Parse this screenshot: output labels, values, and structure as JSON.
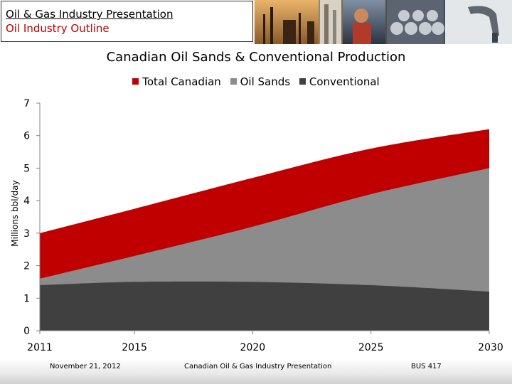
{
  "header": {
    "title_line1": "Oil & Gas Industry Presentation",
    "title_line2": "Oil Industry Outline"
  },
  "footer": {
    "date": "November 21, 2012",
    "presentation": "Canadian Oil & Gas Industry Presentation",
    "course": "BUS 417"
  },
  "colors": {
    "total": "#c00000",
    "oil_sands": "#8c8c8c",
    "conventional": "#404040"
  },
  "chart_data": {
    "type": "area",
    "title": "Canadian Oil Sands & Conventional Production",
    "xlabel": "",
    "ylabel": "Millions bbl/day",
    "x": [
      2011,
      2015,
      2020,
      2025,
      2030
    ],
    "x_ticks": [
      "2011",
      "2015",
      "2020",
      "2025",
      "2030"
    ],
    "xlim": [
      2011,
      2030
    ],
    "ylim": [
      0,
      7
    ],
    "y_ticks": [
      "0",
      "1",
      "2",
      "3",
      "4",
      "5",
      "6",
      "7"
    ],
    "legend_position": "top-center",
    "series": [
      {
        "name": "Total Canadian",
        "values": [
          3.0,
          3.75,
          4.7,
          5.6,
          6.2
        ]
      },
      {
        "name": "Oil Sands",
        "values": [
          1.6,
          2.3,
          3.2,
          4.2,
          5.0
        ]
      },
      {
        "name": "Conventional",
        "values": [
          1.4,
          1.5,
          1.5,
          1.4,
          1.2
        ]
      }
    ]
  }
}
